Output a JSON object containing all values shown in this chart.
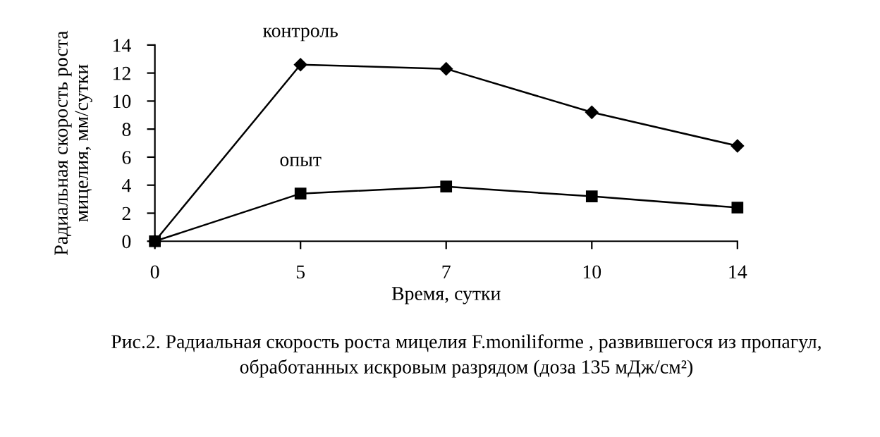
{
  "chart_data": {
    "type": "line",
    "categories": [
      "0",
      "5",
      "7",
      "10",
      "14"
    ],
    "series": [
      {
        "name": "контроль",
        "color": "#000000",
        "marker": "diamond",
        "values": [
          0,
          12.6,
          12.3,
          9.2,
          6.8
        ]
      },
      {
        "name": "опыт",
        "color": "#000000",
        "marker": "square",
        "values": [
          0,
          3.4,
          3.9,
          3.2,
          2.4
        ]
      }
    ],
    "xlabel": "Время, сутки",
    "ylabel": "Радиальная скорость роста мицелия, мм/сутки",
    "ylim": [
      0,
      14
    ],
    "yticks": [
      0,
      2,
      4,
      6,
      8,
      10,
      12,
      14
    ],
    "grid": false,
    "legend": false,
    "line_style": "solid",
    "annotations": [
      "Рис.2. Радиальная скорость роста мицелия F.moniliforme , развившегося из пропагул, обработанных искровым разрядом (доза 135 мДж/см²)"
    ]
  }
}
